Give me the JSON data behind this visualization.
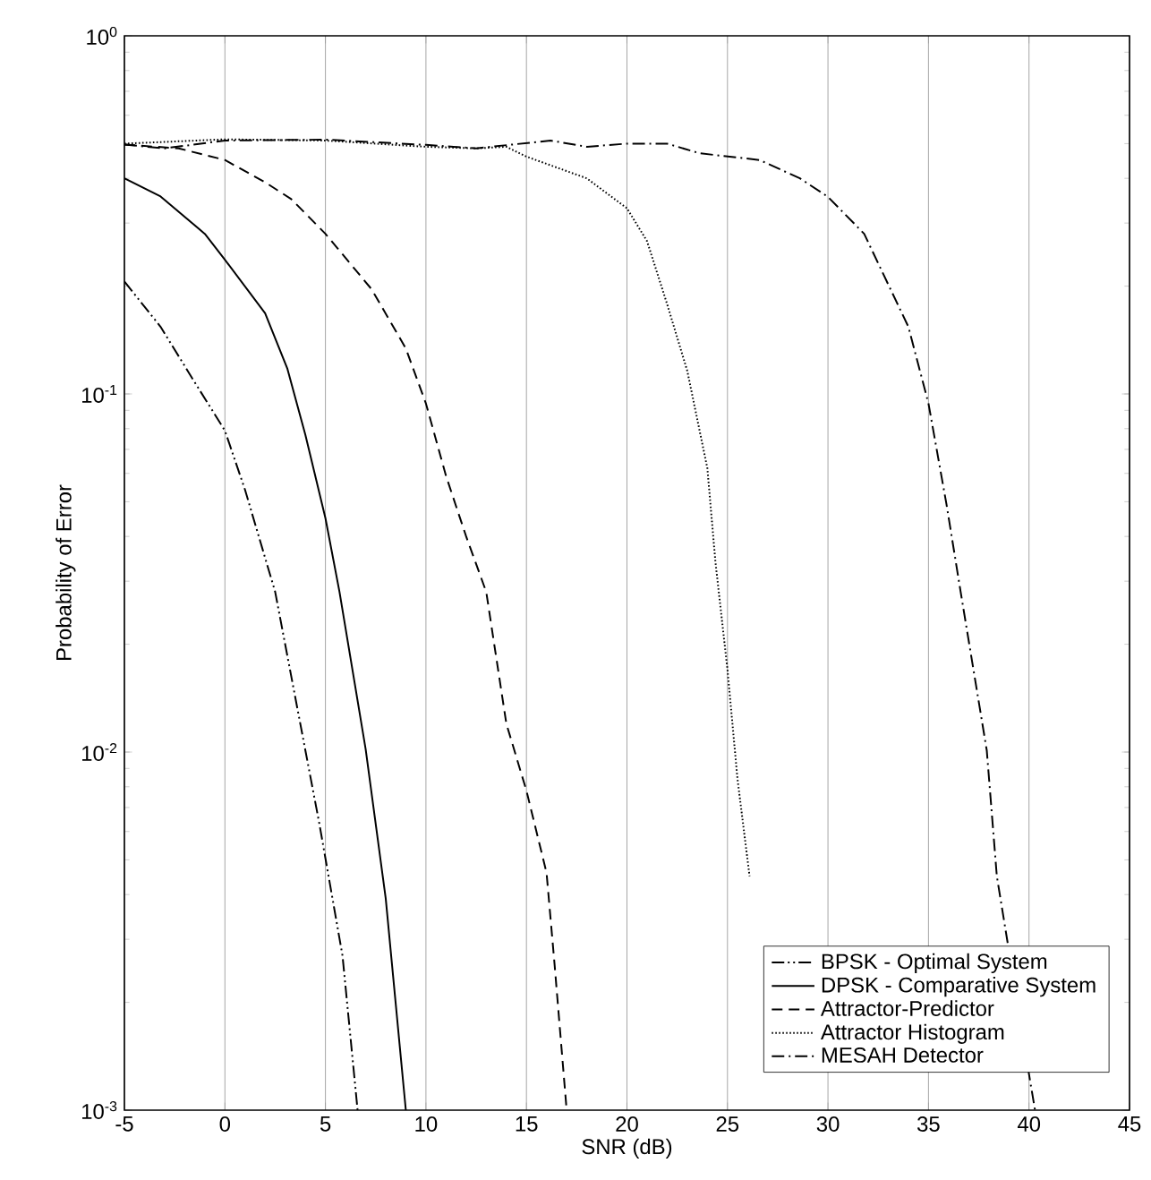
{
  "chart_data": {
    "type": "line",
    "xlabel": "SNR (dB)",
    "ylabel": "Probability of Error",
    "log": "y",
    "grid": "x",
    "legend": "bottom right",
    "xlim": [
      -5,
      45
    ],
    "xticks": [
      -5,
      0,
      5,
      10,
      15,
      20,
      25,
      30,
      35,
      40,
      45
    ],
    "ylim": [
      0.001,
      1
    ],
    "yticks": [
      {
        "value": 0.001,
        "label": "10$^{-3}$"
      },
      {
        "value": 0.01,
        "label": "10$^{-2}$"
      },
      {
        "value": 0.1,
        "label": "10$^{-1}$"
      },
      {
        "value": 1,
        "label": "10$^{0}$"
      }
    ],
    "marker": "none",
    "series": [
      {
        "name": "BPSK - Optimal System",
        "color": "#000000",
        "line_style": "dashdotdotted",
        "x": [
          -5,
          -3.2,
          -1.6,
          0,
          1,
          2.5,
          4.7,
          5.85,
          6.6
        ],
        "values": [
          0.206,
          0.154,
          0.11,
          0.079,
          0.054,
          0.028,
          0.0063,
          0.0027,
          0.001
        ]
      },
      {
        "name": "DPSK - Comparative System",
        "color": "#000000",
        "line_style": "solid",
        "x": [
          -5,
          -3.2,
          -1,
          0,
          2,
          3.1,
          4,
          5,
          5.7,
          7,
          8,
          9
        ],
        "values": [
          0.4,
          0.356,
          0.28,
          0.237,
          0.168,
          0.118,
          0.077,
          0.045,
          0.028,
          0.0102,
          0.0039,
          0.001
        ]
      },
      {
        "name": "Attractor-Predictor",
        "color": "#000000",
        "line_style": "dashed",
        "x": [
          -5,
          -2.3,
          0,
          2,
          3.3,
          5,
          7.3,
          9,
          10,
          11,
          12,
          13,
          14,
          15,
          16,
          16.4,
          17
        ],
        "values": [
          0.497,
          0.485,
          0.45,
          0.39,
          0.35,
          0.28,
          0.196,
          0.134,
          0.094,
          0.059,
          0.04,
          0.028,
          0.012,
          0.0078,
          0.0046,
          0.00255,
          0.001
        ]
      },
      {
        "name": "Attractor Histogram",
        "color": "#000000",
        "line_style": "dotted",
        "x": [
          -5,
          0,
          5,
          10,
          12.5,
          14,
          15,
          18,
          20,
          21,
          22,
          23,
          24,
          24.4,
          25,
          25.5,
          26.1
        ],
        "values": [
          0.5,
          0.514,
          0.51,
          0.49,
          0.485,
          0.49,
          0.46,
          0.4,
          0.33,
          0.267,
          0.178,
          0.116,
          0.062,
          0.034,
          0.017,
          0.0084,
          0.0045
        ]
      },
      {
        "name": "MESAH Detector",
        "color": "#000000",
        "line_style": "dashdotted",
        "x": [
          -5,
          -3,
          0,
          5,
          10,
          12.5,
          16.2,
          18,
          20,
          22,
          23.6,
          26.6,
          28.6,
          30,
          31.8,
          34,
          35,
          35.9,
          36.6,
          37.9,
          38.4,
          40,
          40.3
        ],
        "values": [
          0.497,
          0.485,
          0.51,
          0.513,
          0.496,
          0.485,
          0.51,
          0.49,
          0.5,
          0.5,
          0.47,
          0.45,
          0.4,
          0.355,
          0.28,
          0.154,
          0.094,
          0.049,
          0.028,
          0.0101,
          0.0045,
          0.00126,
          0.001
        ]
      }
    ]
  }
}
